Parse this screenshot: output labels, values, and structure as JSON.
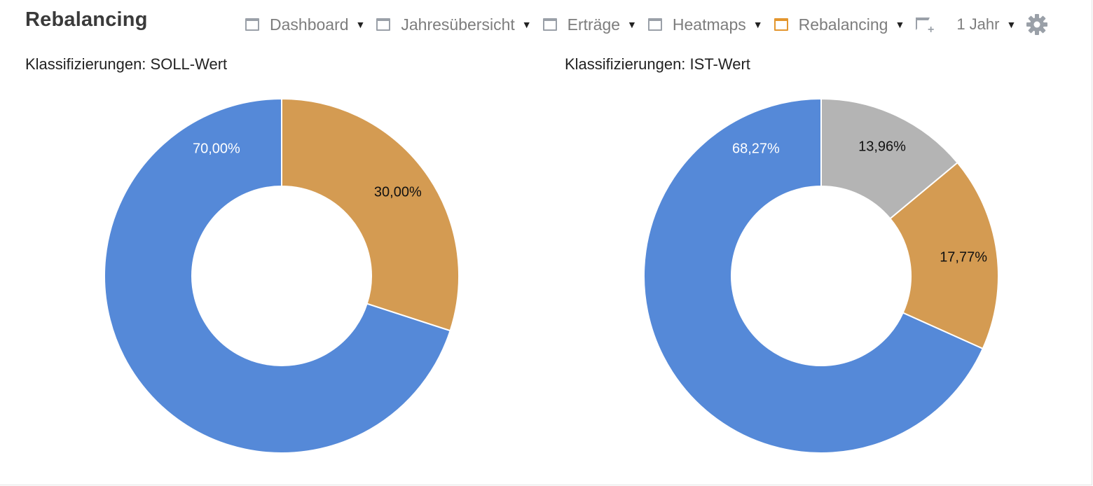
{
  "header": {
    "title": "Rebalancing",
    "nav": [
      {
        "label": "Dashboard",
        "active": false
      },
      {
        "label": "Jahresübersicht",
        "active": false
      },
      {
        "label": "Erträge",
        "active": false
      },
      {
        "label": "Heatmaps",
        "active": false
      },
      {
        "label": "Rebalancing",
        "active": true
      }
    ],
    "add_icon": "add-widget-icon",
    "period": "1 Jahr",
    "settings_icon": "gear-icon"
  },
  "colors": {
    "blue": "#5589d8",
    "orange": "#d49b52",
    "gray": "#b4b4b4",
    "active_accent": "#e3962e"
  },
  "chart_data": [
    {
      "type": "pie",
      "title": "Klassifizierungen: SOLL-Wert",
      "slices": [
        {
          "value": 70.0,
          "label": "70,00%",
          "color": "#5589d8"
        },
        {
          "value": 30.0,
          "label": "30,00%",
          "color": "#d49b52"
        }
      ]
    },
    {
      "type": "pie",
      "title": "Klassifizierungen: IST-Wert",
      "slices": [
        {
          "value": 68.27,
          "label": "68,27%",
          "color": "#5589d8"
        },
        {
          "value": 17.77,
          "label": "17,77%",
          "color": "#d49b52"
        },
        {
          "value": 13.96,
          "label": "13,96%",
          "color": "#b4b4b4"
        }
      ]
    }
  ]
}
